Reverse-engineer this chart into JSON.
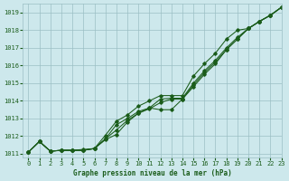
{
  "title": "Graphe pression niveau de la mer (hPa)",
  "background_color": "#cde8ec",
  "grid_color": "#9bbfc4",
  "line_color": "#1a5c1a",
  "xlim": [
    -0.5,
    23
  ],
  "ylim": [
    1010.8,
    1019.5
  ],
  "yticks": [
    1011,
    1012,
    1013,
    1014,
    1015,
    1016,
    1017,
    1018,
    1019
  ],
  "xticks": [
    0,
    1,
    2,
    3,
    4,
    5,
    6,
    7,
    8,
    9,
    10,
    11,
    12,
    13,
    14,
    15,
    16,
    17,
    18,
    19,
    20,
    21,
    22,
    23
  ],
  "series": [
    [
      1011.1,
      1011.7,
      1011.15,
      1011.2,
      1011.2,
      1011.2,
      1011.3,
      1011.8,
      1012.1,
      1012.8,
      1013.3,
      1013.6,
      1013.5,
      1013.5,
      1014.1,
      1014.8,
      1015.5,
      1016.1,
      1016.9,
      1017.5,
      1018.1,
      1018.5,
      1018.85,
      1019.3
    ],
    [
      1011.1,
      1011.7,
      1011.15,
      1011.2,
      1011.2,
      1011.2,
      1011.3,
      1011.85,
      1012.35,
      1012.9,
      1013.3,
      1013.55,
      1013.9,
      1014.1,
      1014.1,
      1014.9,
      1015.6,
      1016.2,
      1016.9,
      1017.5,
      1018.1,
      1018.5,
      1018.85,
      1019.3
    ],
    [
      1011.1,
      1011.7,
      1011.15,
      1011.2,
      1011.2,
      1011.2,
      1011.3,
      1011.85,
      1012.65,
      1013.0,
      1013.4,
      1013.6,
      1014.1,
      1014.15,
      1014.15,
      1015.0,
      1015.7,
      1016.3,
      1017.0,
      1017.6,
      1018.1,
      1018.5,
      1018.85,
      1019.3
    ],
    [
      1011.1,
      1011.7,
      1011.15,
      1011.2,
      1011.2,
      1011.25,
      1011.3,
      1012.05,
      1012.85,
      1013.2,
      1013.7,
      1014.0,
      1014.3,
      1014.3,
      1014.3,
      1015.4,
      1016.1,
      1016.7,
      1017.5,
      1018.0,
      1018.1,
      1018.5,
      1018.85,
      1019.3
    ]
  ]
}
